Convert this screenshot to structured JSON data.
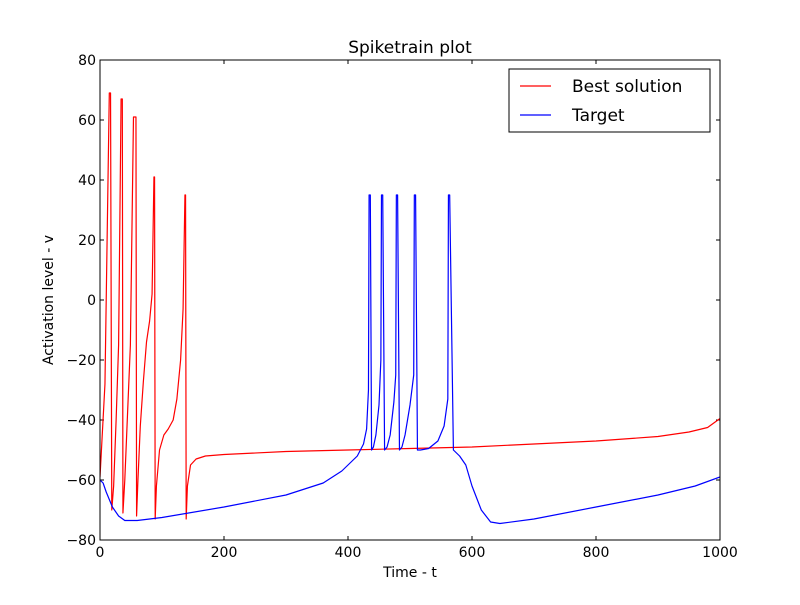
{
  "chart_data": {
    "type": "line",
    "title": "Spiketrain plot",
    "xlabel": "Time - t",
    "ylabel": "Activation level - v",
    "xlim": [
      0,
      1000
    ],
    "ylim": [
      -80,
      80
    ],
    "x_ticks": [
      0,
      200,
      400,
      600,
      800,
      1000
    ],
    "y_ticks": [
      -80,
      -60,
      -40,
      -20,
      0,
      20,
      40,
      60,
      80
    ],
    "x_tick_labels": [
      "0",
      "200",
      "400",
      "600",
      "800",
      "1000"
    ],
    "y_tick_labels": [
      "−80",
      "−60",
      "−40",
      "−20",
      "0",
      "20",
      "40",
      "60",
      "80"
    ],
    "grid": false,
    "legend_position": "top-right",
    "series": [
      {
        "name": "Best solution",
        "color": "#ff0000",
        "x": [
          0,
          8,
          15,
          17,
          19,
          22,
          26,
          30,
          34,
          36,
          37,
          40,
          44,
          49,
          54,
          58,
          59,
          61,
          65,
          70,
          75,
          80,
          84,
          87,
          88,
          89,
          91,
          96,
          103,
          110,
          118,
          124,
          130,
          134,
          137,
          138,
          139,
          141,
          146,
          155,
          170,
          200,
          300,
          400,
          500,
          600,
          700,
          800,
          900,
          950,
          980,
          1000
        ],
        "y": [
          -59,
          -28,
          69,
          69,
          -70,
          -62,
          -40,
          -15,
          67,
          67,
          -71,
          -60,
          -40,
          -15,
          61,
          61,
          -72,
          -61,
          -42,
          -27,
          -14,
          -7,
          2,
          41,
          41,
          -73,
          -62,
          -50,
          -45,
          -43,
          -40,
          -33,
          -20,
          -3,
          35,
          35,
          -73,
          -62,
          -55,
          -53,
          -52,
          -51.5,
          -50.5,
          -50,
          -49.5,
          -49,
          -48,
          -47,
          -45.5,
          -44,
          -42.5,
          -39.5
        ]
      },
      {
        "name": "Target",
        "color": "#0000ff",
        "x": [
          0,
          5,
          10,
          20,
          30,
          40,
          60,
          100,
          200,
          300,
          360,
          390,
          405,
          415,
          425,
          430,
          433,
          434,
          436,
          438,
          441,
          445,
          450,
          453,
          454,
          456,
          459,
          463,
          468,
          474,
          477,
          478,
          480,
          483,
          487,
          492,
          500,
          506,
          507,
          509,
          512,
          517,
          530,
          545,
          555,
          561,
          562,
          564,
          570,
          580,
          590,
          600,
          615,
          630,
          645,
          700,
          800,
          900,
          960,
          1000
        ],
        "y": [
          -60,
          -61,
          -64,
          -69,
          -72,
          -73.5,
          -73.5,
          -72.5,
          -69,
          -65,
          -61,
          -57,
          -54,
          -52,
          -48,
          -43,
          -30,
          35,
          35,
          -50,
          -49,
          -45,
          -35,
          -20,
          35,
          35,
          -50,
          -49,
          -45,
          -34,
          -25,
          35,
          35,
          -50,
          -49,
          -45,
          -35,
          -25,
          35,
          35,
          -50,
          -50,
          -49.5,
          -47,
          -42,
          -33,
          35,
          35,
          -50,
          -52,
          -55,
          -62,
          -70,
          -74,
          -74.5,
          -73,
          -69,
          -65,
          -62,
          -59
        ]
      }
    ]
  }
}
